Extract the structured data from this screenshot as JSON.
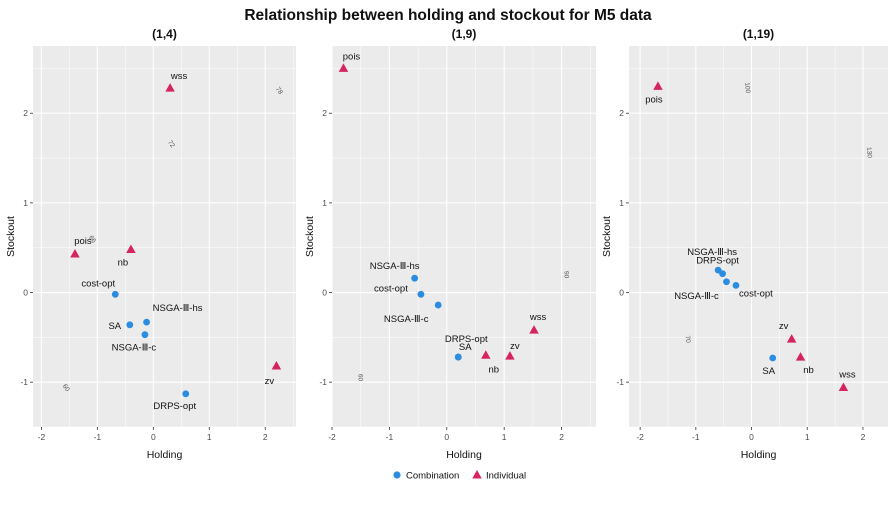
{
  "title": "Relationship between holding and stockout for M5 data",
  "x_label": "Holding",
  "y_label": "Stockout",
  "legend": {
    "items": [
      {
        "label": "Combination",
        "shape": "circle",
        "color": "#2B8CE0"
      },
      {
        "label": "Individual",
        "shape": "triangle",
        "color": "#D6245E"
      }
    ],
    "placement": "bottom"
  },
  "colors": {
    "panel_bg": "#EBEBEB",
    "grid": "#FFFFFF",
    "contour": "#9A9A9A",
    "combination": "#2B8CE0",
    "individual": "#D6245E"
  },
  "chart_data": [
    {
      "type": "scatter",
      "title": "(1,4)",
      "xlim": [
        -2.15,
        2.55
      ],
      "ylim": [
        -1.5,
        2.75
      ],
      "x_ticks": [
        -2,
        -1,
        0,
        1,
        2
      ],
      "y_ticks": [
        -1,
        0,
        1,
        2
      ],
      "grid": true,
      "contour_labels": [
        "60",
        "66",
        "72",
        "78"
      ],
      "points": [
        {
          "label": "pois",
          "x": -1.4,
          "y": 0.43,
          "group": "Individual"
        },
        {
          "label": "nb",
          "x": -0.4,
          "y": 0.48,
          "group": "Individual"
        },
        {
          "label": "wss",
          "x": 0.3,
          "y": 2.28,
          "group": "Individual"
        },
        {
          "label": "zv",
          "x": 2.2,
          "y": -0.82,
          "group": "Individual"
        },
        {
          "label": "cost-opt",
          "x": -0.68,
          "y": -0.02,
          "group": "Combination"
        },
        {
          "label": "SA",
          "x": -0.42,
          "y": -0.36,
          "group": "Combination"
        },
        {
          "label": "NSGA-Ⅲ-hs",
          "x": -0.12,
          "y": -0.33,
          "group": "Combination"
        },
        {
          "label": "NSGA-Ⅲ-c",
          "x": -0.15,
          "y": -0.47,
          "group": "Combination"
        },
        {
          "label": "DRPS-opt",
          "x": 0.58,
          "y": -1.13,
          "group": "Combination"
        }
      ]
    },
    {
      "type": "scatter",
      "title": "(1,9)",
      "xlim": [
        -2.0,
        2.6
      ],
      "ylim": [
        -1.5,
        2.75
      ],
      "x_ticks": [
        -2,
        -1,
        0,
        1,
        2
      ],
      "y_ticks": [
        -1,
        0,
        1,
        2
      ],
      "grid": true,
      "contour_labels": [
        "60",
        "90"
      ],
      "points": [
        {
          "label": "pois",
          "x": -1.8,
          "y": 2.5,
          "group": "Individual"
        },
        {
          "label": "nb",
          "x": 0.68,
          "y": -0.7,
          "group": "Individual"
        },
        {
          "label": "zv",
          "x": 1.1,
          "y": -0.71,
          "group": "Individual"
        },
        {
          "label": "wss",
          "x": 1.52,
          "y": -0.42,
          "group": "Individual"
        },
        {
          "label": "NSGA-Ⅲ-hs",
          "x": -0.56,
          "y": 0.16,
          "group": "Combination"
        },
        {
          "label": "cost-opt",
          "x": -0.45,
          "y": -0.02,
          "group": "Combination"
        },
        {
          "label": "NSGA-Ⅲ-c",
          "x": -0.15,
          "y": -0.14,
          "group": "Combination"
        },
        {
          "label": "DRPS-opt",
          "x": 0.2,
          "y": -0.72,
          "group": "Combination"
        },
        {
          "label": "SA",
          "x": 0.2,
          "y": -0.72,
          "group": "Combination"
        }
      ]
    },
    {
      "type": "scatter",
      "title": "(1,19)",
      "xlim": [
        -2.2,
        2.45
      ],
      "ylim": [
        -1.5,
        2.75
      ],
      "x_ticks": [
        -2,
        -1,
        0,
        1,
        2
      ],
      "y_ticks": [
        -1,
        0,
        1,
        2
      ],
      "grid": true,
      "contour_labels": [
        "70",
        "100",
        "130"
      ],
      "points": [
        {
          "label": "pois",
          "x": -1.68,
          "y": 2.3,
          "group": "Individual"
        },
        {
          "label": "zv",
          "x": 0.72,
          "y": -0.52,
          "group": "Individual"
        },
        {
          "label": "nb",
          "x": 0.88,
          "y": -0.72,
          "group": "Individual"
        },
        {
          "label": "wss",
          "x": 1.65,
          "y": -1.06,
          "group": "Individual"
        },
        {
          "label": "NSGA-Ⅲ-hs",
          "x": -0.6,
          "y": 0.25,
          "group": "Combination"
        },
        {
          "label": "DRPS-opt",
          "x": -0.52,
          "y": 0.21,
          "group": "Combination"
        },
        {
          "label": "NSGA-Ⅲ-c",
          "x": -0.45,
          "y": 0.12,
          "group": "Combination"
        },
        {
          "label": "cost-opt",
          "x": -0.28,
          "y": 0.08,
          "group": "Combination"
        },
        {
          "label": "SA",
          "x": 0.38,
          "y": -0.73,
          "group": "Combination"
        }
      ]
    }
  ]
}
